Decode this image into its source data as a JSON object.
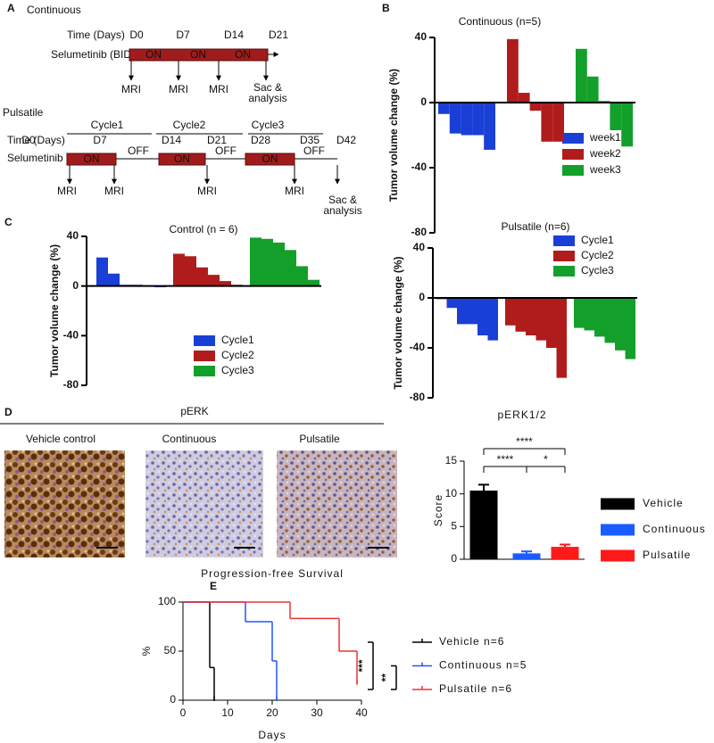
{
  "panel_labels": [
    "A",
    "B",
    "C",
    "D",
    "E"
  ],
  "schematic": {
    "continuous": {
      "title": "Continuous",
      "time_label": "Time (Days)",
      "days": [
        "D0",
        "D7",
        "D14",
        "D21"
      ],
      "drug": "Selumetinib (BID)",
      "on": [
        "ON",
        "ON",
        "ON"
      ],
      "mri": [
        "MRI",
        "MRI",
        "MRI"
      ],
      "end": [
        "Sac &",
        "analysis"
      ]
    },
    "pulsatile": {
      "title": "Pulsatile",
      "cycles": [
        "Cycle1",
        "Cycle2",
        "Cycle3"
      ],
      "time_label": "Time (Days)",
      "days": [
        "D0",
        "D7",
        "D14",
        "D21",
        "D28",
        "D35",
        "D42"
      ],
      "drug": "Selumetinib",
      "on": [
        "ON",
        "ON",
        "ON"
      ],
      "off": [
        "OFF",
        "OFF",
        "OFF"
      ],
      "mri": [
        "MRI",
        "MRI",
        "MRI",
        "MRI"
      ],
      "end": [
        "Sac &",
        "analysis"
      ]
    }
  },
  "staining": {
    "title": "pERK",
    "labels": [
      "Vehicle control",
      "Continuous",
      "Pulsatile"
    ]
  },
  "chart_data": [
    {
      "type": "waterfall",
      "title": "Continuous (n=5)",
      "y_label": "Tumor volume change (%)",
      "ylim": [
        -80,
        40
      ],
      "yticks": [
        -80,
        -40,
        0,
        40
      ],
      "series": [
        {
          "name": "week1",
          "color": "#1a3fd6",
          "values": [
            -7,
            -19,
            -20,
            -20,
            -29
          ]
        },
        {
          "name": "week2",
          "color": "#b01c1c",
          "values": [
            39,
            6,
            -5,
            -24,
            -24
          ]
        },
        {
          "name": "week3",
          "color": "#13a02a",
          "values": [
            33,
            16,
            1,
            -17,
            -27
          ]
        }
      ]
    },
    {
      "type": "waterfall",
      "title": "Control (n = 6)",
      "y_label": "Tumor volume change (%)",
      "ylim": [
        -80,
        40
      ],
      "yticks": [
        -80,
        -40,
        0,
        40
      ],
      "series": [
        {
          "name": "Cycle1",
          "color": "#1a3fd6",
          "values": [
            23,
            10,
            1,
            1,
            0.5,
            -1
          ]
        },
        {
          "name": "Cycle2",
          "color": "#b01c1c",
          "values": [
            26,
            24,
            15,
            9,
            4,
            1
          ]
        },
        {
          "name": "Cycle3",
          "color": "#13a02a",
          "values": [
            39,
            38,
            35,
            29,
            16,
            5
          ]
        }
      ]
    },
    {
      "type": "waterfall",
      "title": "Pulsatile (n=6)",
      "y_label": "Tumor volume change (%)",
      "ylim": [
        -80,
        40
      ],
      "yticks": [
        -80,
        -40,
        0,
        40
      ],
      "series": [
        {
          "name": "Cycle1",
          "color": "#1a3fd6",
          "values": [
            -1,
            -8,
            -21,
            -21,
            -30,
            -34
          ]
        },
        {
          "name": "Cycle2",
          "color": "#b01c1c",
          "values": [
            -22,
            -27,
            -30,
            -34,
            -40,
            -64
          ]
        },
        {
          "name": "Cycle3",
          "color": "#13a02a",
          "values": [
            -24,
            -26,
            -31,
            -36,
            -42,
            -49
          ]
        }
      ]
    },
    {
      "type": "bar",
      "title": "pERK1/2",
      "y_label": "Score",
      "categories": [
        "Vehicle",
        "Continuous",
        "Pulsatile"
      ],
      "values": [
        10.5,
        0.9,
        1.9
      ],
      "errors": [
        0.9,
        0.3,
        0.35
      ],
      "colors": [
        "#000000",
        "#1a5cff",
        "#ff1a1a"
      ],
      "ylim": [
        0,
        15
      ],
      "yticks": [
        0,
        5,
        10,
        15
      ],
      "annotations": [
        "****",
        "****",
        "*"
      ]
    },
    {
      "type": "step",
      "title": "Progression-free Survival",
      "x_label": "Days",
      "y_label": "%",
      "xlim": [
        0,
        40
      ],
      "ylim": [
        0,
        100
      ],
      "xticks": [
        0,
        10,
        20,
        30,
        40
      ],
      "yticks": [
        0,
        50,
        100
      ],
      "series": [
        {
          "name": "Vehicle n=6",
          "color": "#000000",
          "x": [
            0,
            6,
            7
          ],
          "values": [
            100,
            33.3,
            0
          ]
        },
        {
          "name": "Continuous n=5",
          "color": "#2255ff",
          "x": [
            0,
            14,
            20,
            21
          ],
          "values": [
            100,
            80,
            40,
            0
          ]
        },
        {
          "name": "Pulsatile n=6",
          "color": "#ee3333",
          "x": [
            0,
            24,
            35,
            39
          ],
          "values": [
            100,
            83.3,
            50,
            16.7
          ]
        }
      ],
      "annotations": [
        "***",
        "**"
      ]
    }
  ]
}
